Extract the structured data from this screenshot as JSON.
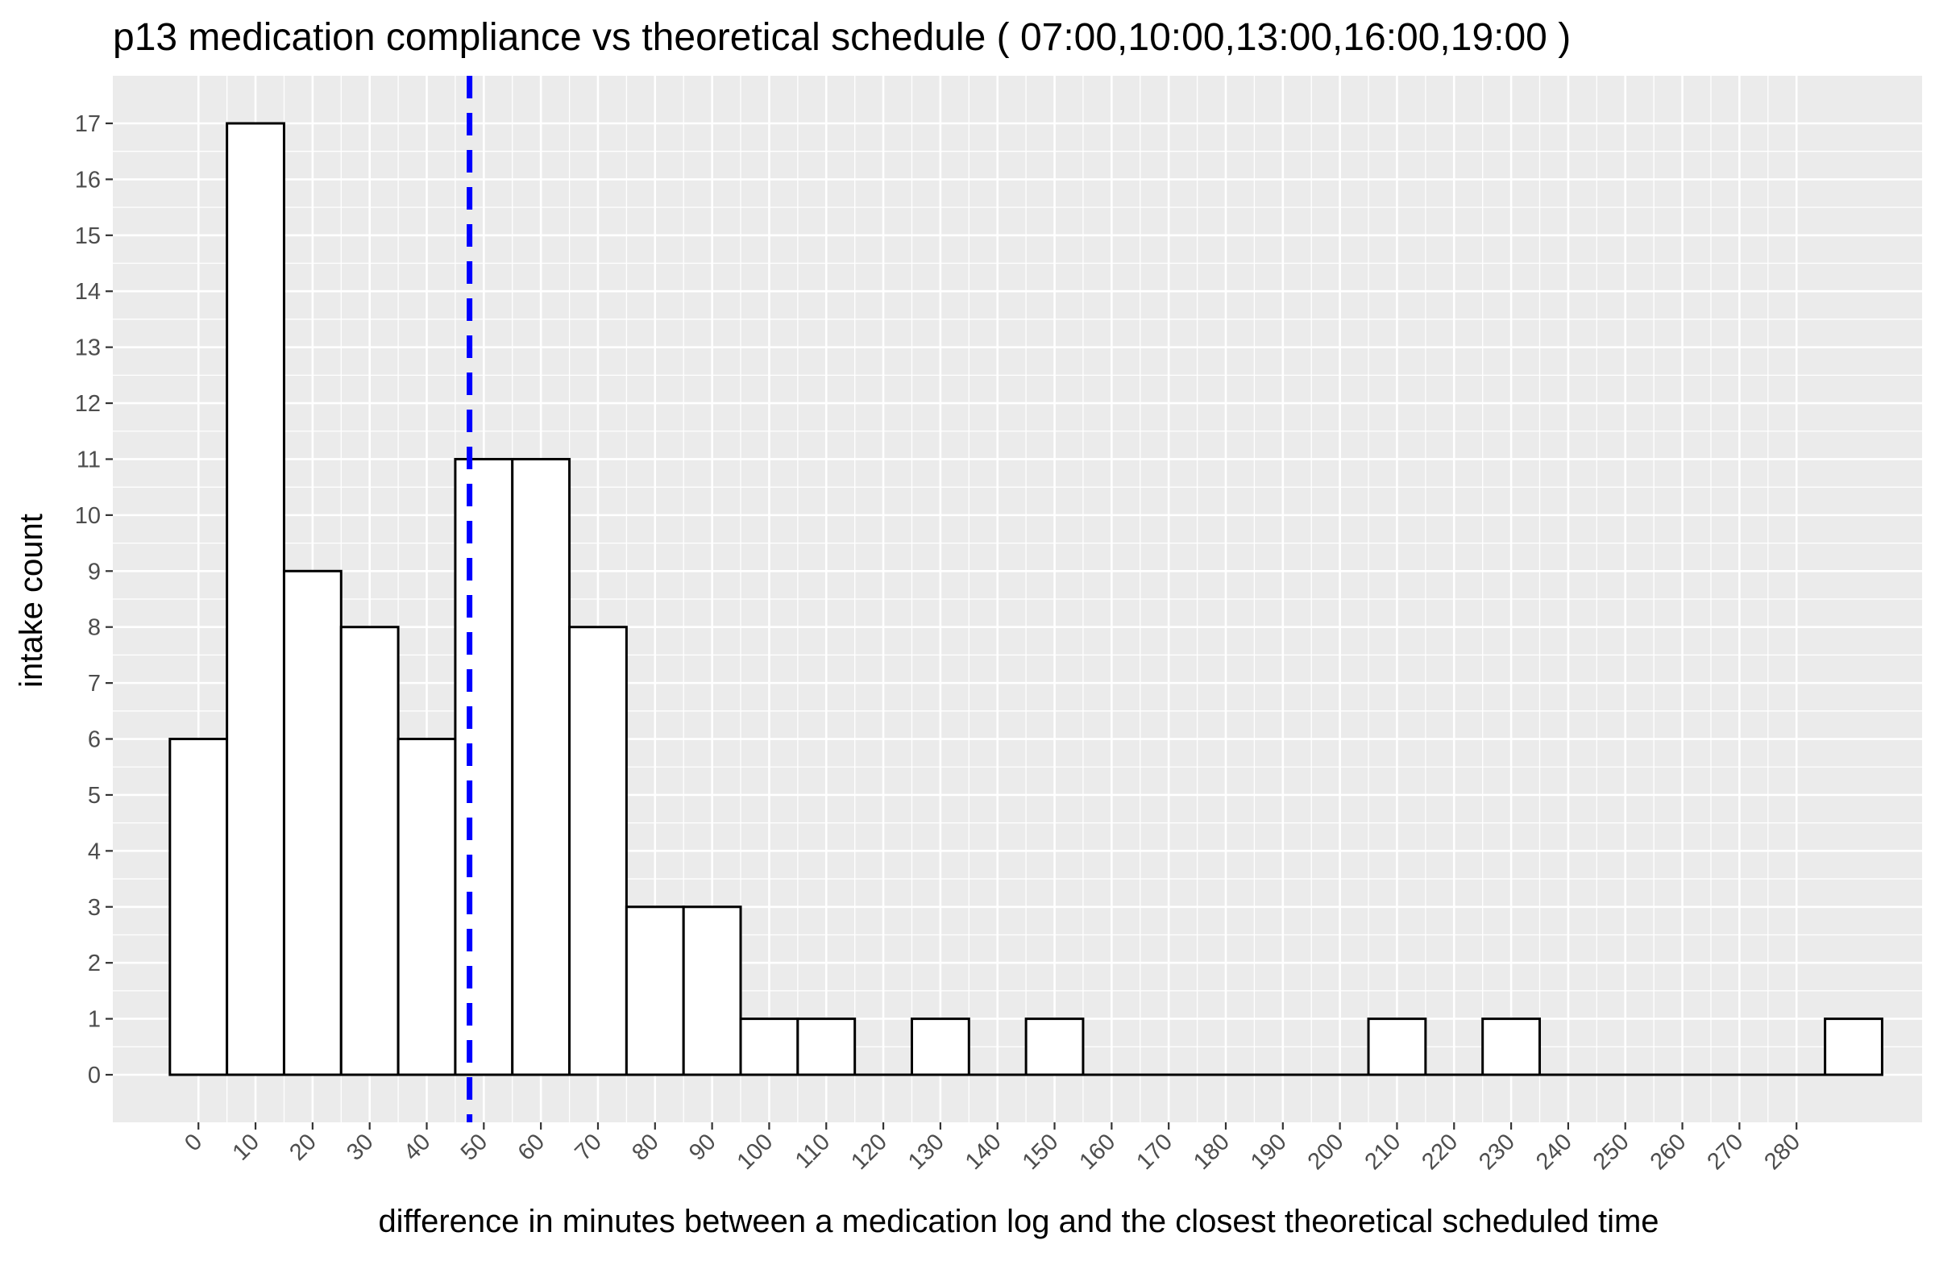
{
  "chart_data": {
    "type": "bar",
    "title": "p13  medication compliance vs theoretical schedule ( 07:00,10:00,13:00,16:00,19:00 )",
    "xlabel": "difference in minutes between a medication log and the closest theoretical scheduled time",
    "ylabel": "intake count",
    "bin_width": 10,
    "bin_centers": [
      0,
      10,
      20,
      30,
      40,
      50,
      60,
      70,
      80,
      90,
      100,
      110,
      120,
      130,
      140,
      150,
      160,
      170,
      180,
      190,
      200,
      210,
      220,
      230,
      240,
      250,
      260,
      270,
      280,
      290
    ],
    "values": [
      6,
      17,
      9,
      8,
      6,
      11,
      11,
      8,
      3,
      3,
      1,
      1,
      0,
      1,
      0,
      1,
      0,
      0,
      0,
      0,
      0,
      1,
      0,
      1,
      0,
      0,
      0,
      0,
      0,
      1
    ],
    "xticks": [
      0,
      10,
      20,
      30,
      40,
      50,
      60,
      70,
      80,
      90,
      100,
      110,
      120,
      130,
      140,
      150,
      160,
      170,
      180,
      190,
      200,
      210,
      220,
      230,
      240,
      250,
      260,
      270,
      280
    ],
    "yticks": [
      0,
      1,
      2,
      3,
      4,
      5,
      6,
      7,
      8,
      9,
      10,
      11,
      12,
      13,
      14,
      15,
      16,
      17
    ],
    "xlim": [
      -15,
      302
    ],
    "ylim": [
      -0.85,
      17.85
    ],
    "mean_line": {
      "x": 47.5,
      "color": "#0000ff",
      "style": "dashed"
    },
    "bar_fill": "#ffffff",
    "bar_stroke": "#000000",
    "panel_background": "#ebebeb",
    "grid_color": "#ffffff",
    "grid": true,
    "legend": "none"
  }
}
